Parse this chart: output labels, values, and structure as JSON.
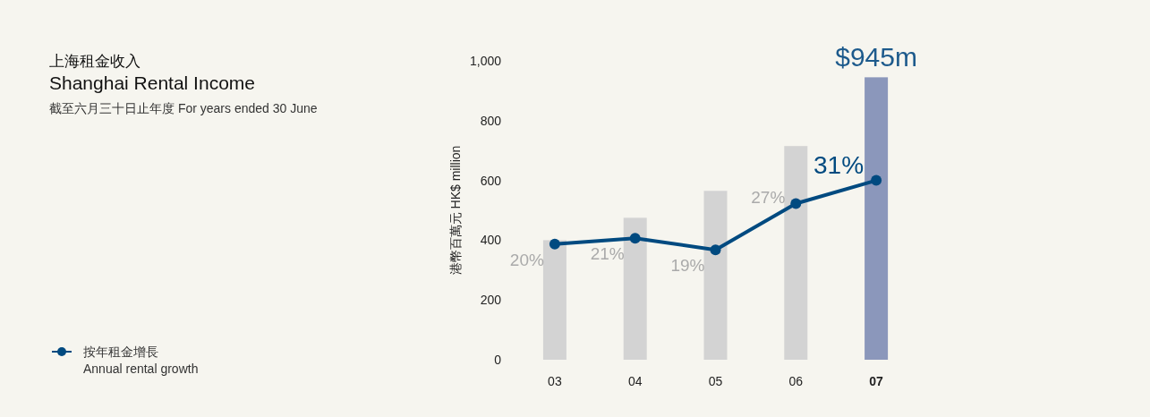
{
  "chart_data": {
    "type": "bar",
    "title": "上海租金收入",
    "subtitle": "Shanghai Rental Income",
    "annotations": [
      "截至六月三十日止年度 For years ended 30 June"
    ],
    "ylabel": "港幣百萬元 HK$ million",
    "categories": [
      "03",
      "04",
      "05",
      "06",
      "07"
    ],
    "ylim": [
      0,
      1000
    ],
    "yticks": [
      0,
      200,
      400,
      600,
      800,
      {
        "value": 1000,
        "label": "1,000"
      }
    ],
    "grid": false,
    "legend": "bottom left",
    "series": [
      {
        "colors": [
          "#d3d3d3",
          "#d3d3d3",
          "#d3d3d3",
          "#d3d3d3",
          "#8b97bb"
        ],
        "values": [
          400,
          475,
          565,
          715,
          945
        ],
        "value_labels": [
          null,
          null,
          null,
          null,
          "$945m"
        ]
      },
      {
        "type": "line",
        "name": "按年租金增長\nAnnual rental growth",
        "color": "#004a80",
        "axis": "y2",
        "marker": "circle",
        "values": [
          20,
          21,
          19,
          27,
          31
        ],
        "value_labels": [
          "20%",
          "21%",
          "19%",
          "27%",
          "31%"
        ]
      }
    ]
  }
}
